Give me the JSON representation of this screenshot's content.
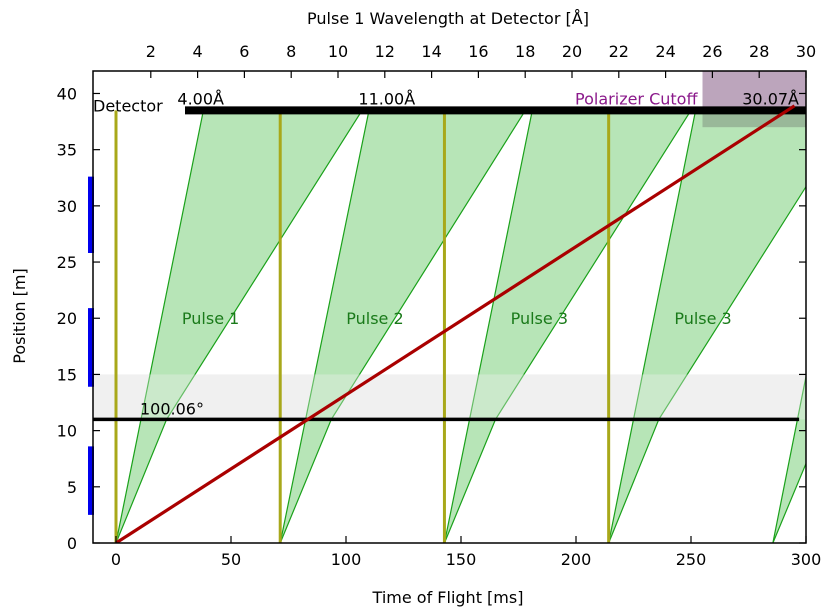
{
  "chart_data": {
    "type": "line",
    "xlabel": "Time of Flight [ms]",
    "ylabel": "Position [m]",
    "top_xlabel": "Pulse 1 Wavelength at Detector [Å]",
    "xlim": [
      -10,
      300
    ],
    "ylim": [
      0,
      42
    ],
    "top_xlim": [
      -0.47,
      30.0
    ],
    "x_ticks": [
      0,
      50,
      100,
      150,
      200,
      250,
      300
    ],
    "y_ticks": [
      0,
      5,
      10,
      15,
      20,
      25,
      30,
      35,
      40
    ],
    "top_ticks": [
      2,
      4,
      6,
      8,
      10,
      12,
      14,
      16,
      18,
      20,
      22,
      24,
      26,
      28,
      30
    ],
    "grid": false,
    "detector": {
      "label": "Detector",
      "y": 38.5,
      "x_start": 30,
      "x_end": 300,
      "min_wavelength_label": "4.00Å",
      "frame_wavelength_label": "11.00Å",
      "max_wavelength_label": "30.07Å"
    },
    "polarizer": {
      "label": "Polarizer Cutoff",
      "x_range": [
        255,
        300
      ],
      "y_range": [
        37,
        42
      ],
      "color": "#e8c8e8",
      "label_color": "#8b1a8b"
    },
    "chopper": {
      "label": "100.06°",
      "y": 11.0,
      "x_start": -10,
      "x_end": 297,
      "gray_band": [
        11.0,
        15.0
      ]
    },
    "chopper_openings": [
      {
        "y_from": 2.5,
        "y_to": 8.6
      },
      {
        "y_from": 13.9,
        "y_to": 20.9
      },
      {
        "y_from": 25.8,
        "y_to": 32.6
      }
    ],
    "pulses": [
      {
        "label": "Pulse 1",
        "t0": 0,
        "t_fast_detector": 38,
        "t_slow_detector": 107,
        "t_slow_chopper": 22
      },
      {
        "label": "Pulse 2",
        "t0": 71.4,
        "t_fast_detector": 110,
        "t_slow_detector": 178,
        "t_slow_chopper": 93.6
      },
      {
        "label": "Pulse 3",
        "t0": 142.8,
        "t_fast_detector": 181,
        "t_slow_detector": 250,
        "t_slow_chopper": 165
      },
      {
        "label": "Pulse 3",
        "t0": 214.2,
        "t_fast_detector": 252,
        "t_slow_detector": 321,
        "t_slow_chopper": 236
      },
      {
        "label": "",
        "t0": 285.6,
        "t_fast_detector": 323,
        "t_slow_detector": 392,
        "t_slow_chopper": 308
      }
    ],
    "pulse_label_y": 20,
    "pulse_markers": [
      0,
      71.4,
      142.8,
      214.2
    ],
    "slowest_neutron": {
      "x": [
        0,
        295
      ],
      "y": [
        0,
        38.9
      ]
    },
    "colors": {
      "pulse_fill": "#b3e4b3",
      "pulse_edge": "#1aa11a",
      "pulse_label": "#1a7a1a",
      "marker": "#a8a81a",
      "slow_line": "#aa0000",
      "opening": "#0000ee",
      "detector": "#000000",
      "gray_band": "#f0f0f0"
    }
  }
}
